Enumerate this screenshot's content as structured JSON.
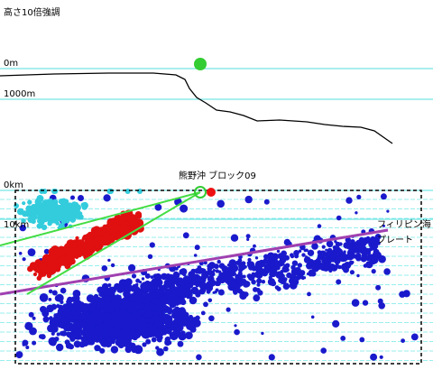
{
  "header": {
    "title": "高さ10倍強調"
  },
  "profile": {
    "depth_labels": [
      "0m",
      "1000m"
    ]
  },
  "section": {
    "depth_labels": [
      "0km",
      "10km"
    ],
    "block_label": "熊野沖 ブロック09",
    "plate_label": [
      "フィリピン海",
      "プレート"
    ]
  }
}
